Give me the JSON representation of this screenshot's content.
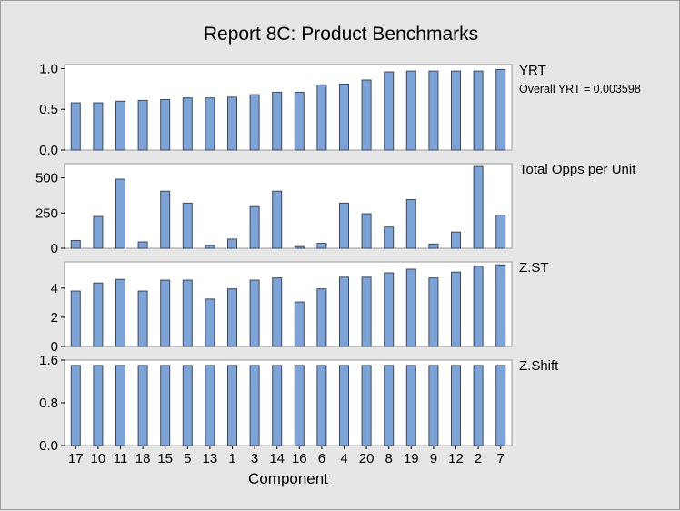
{
  "chart_data": {
    "type": "bar",
    "title": "Report 8C: Product Benchmarks",
    "xlabel": "Component",
    "categories": [
      "17",
      "10",
      "11",
      "18",
      "15",
      "5",
      "13",
      "1",
      "3",
      "14",
      "16",
      "6",
      "4",
      "20",
      "8",
      "19",
      "9",
      "12",
      "2",
      "7"
    ],
    "panels": [
      {
        "name": "YRT",
        "subtitle": "Overall YRT = 0.003598",
        "ylim": [
          0,
          1.05
        ],
        "yticks": [
          0.0,
          0.5,
          1.0
        ],
        "ytick_labels": [
          "0.0",
          "0.5",
          "1.0"
        ],
        "values": [
          0.58,
          0.58,
          0.6,
          0.61,
          0.62,
          0.64,
          0.64,
          0.65,
          0.68,
          0.71,
          0.71,
          0.8,
          0.81,
          0.86,
          0.96,
          0.97,
          0.97,
          0.97,
          0.97,
          0.99
        ]
      },
      {
        "name": "Total Opps per Unit",
        "subtitle": "",
        "ylim": [
          0,
          600
        ],
        "yticks": [
          0,
          250,
          500
        ],
        "ytick_labels": [
          "0",
          "250",
          "500"
        ],
        "values": [
          55,
          225,
          490,
          45,
          405,
          320,
          20,
          65,
          295,
          405,
          12,
          35,
          320,
          245,
          150,
          345,
          30,
          115,
          580,
          235
        ]
      },
      {
        "name": "Z.ST",
        "subtitle": "",
        "ylim": [
          0,
          5.8
        ],
        "yticks": [
          0,
          2,
          4
        ],
        "ytick_labels": [
          "0",
          "2",
          "4"
        ],
        "values": [
          3.8,
          4.35,
          4.6,
          3.8,
          4.55,
          4.55,
          3.25,
          3.95,
          4.55,
          4.7,
          3.05,
          3.95,
          4.75,
          4.75,
          5.05,
          5.3,
          4.7,
          5.1,
          5.5,
          5.6
        ]
      },
      {
        "name": "Z.Shift",
        "subtitle": "",
        "ylim": [
          0,
          1.6
        ],
        "yticks": [
          0.0,
          0.8,
          1.6
        ],
        "ytick_labels": [
          "0.0",
          "0.8",
          "1.6"
        ],
        "values": [
          1.5,
          1.5,
          1.5,
          1.5,
          1.5,
          1.5,
          1.5,
          1.5,
          1.5,
          1.5,
          1.5,
          1.5,
          1.5,
          1.5,
          1.5,
          1.5,
          1.5,
          1.5,
          1.5,
          1.5
        ]
      }
    ]
  },
  "colors": {
    "bar_fill": "#7ea3d6",
    "bar_edge": "#3c4a5e",
    "panel_bg": "#ffffff",
    "figure_bg": "#e6e6e6"
  }
}
